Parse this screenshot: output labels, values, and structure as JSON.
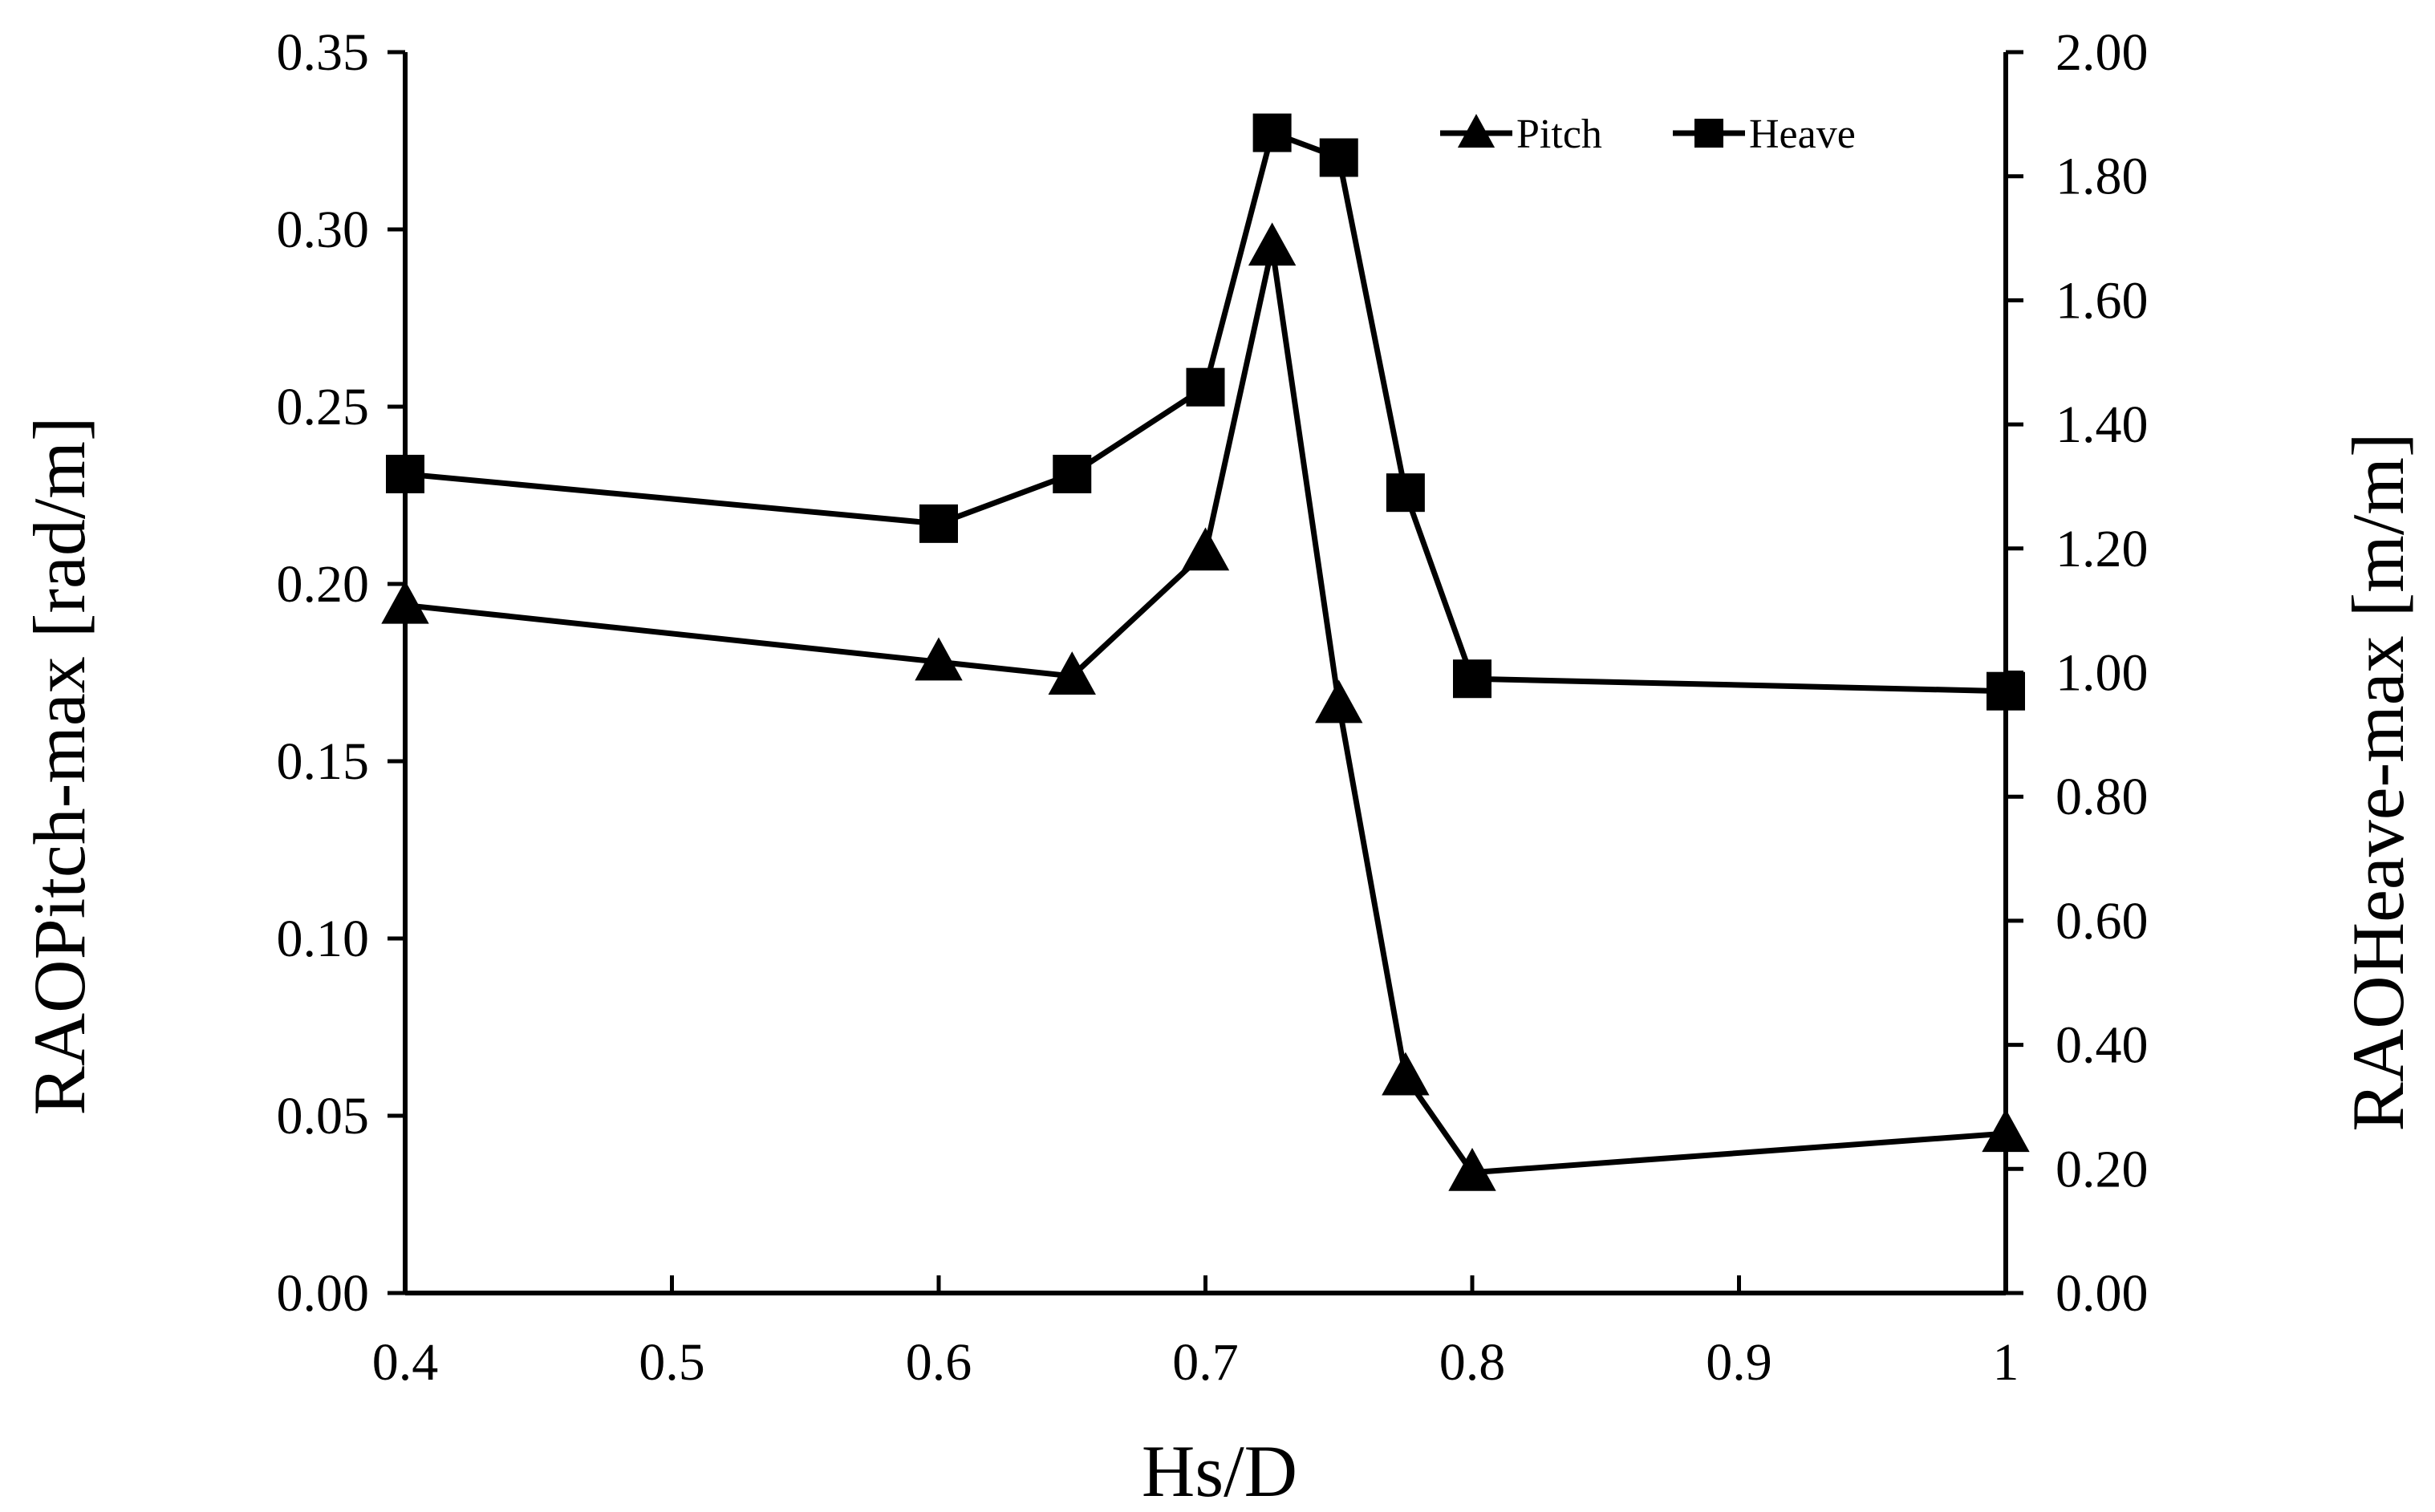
{
  "chart_data": {
    "type": "line",
    "xlabel": "Hs/D",
    "ylabel_left": "RAOPitch-max [rad/m]",
    "ylabel_right": "RAOHeave-max [m/m]",
    "xlim": [
      0.4,
      1.0
    ],
    "ylim_left": [
      0,
      0.35
    ],
    "ylim_right": [
      0,
      2.0
    ],
    "x_ticks": [
      0.4,
      0.5,
      0.6,
      0.7,
      0.8,
      0.9,
      1.0
    ],
    "x_tick_labels": [
      "0.4",
      "0.5",
      "0.6",
      "0.7",
      "0.8",
      "0.9",
      "1"
    ],
    "y_left_ticks": [
      0,
      0.05,
      0.1,
      0.15,
      0.2,
      0.25,
      0.3,
      0.35
    ],
    "y_left_tick_labels": [
      "0.00",
      "0.05",
      "0.10",
      "0.15",
      "0.20",
      "0.25",
      "0.30",
      "0.35"
    ],
    "y_right_ticks": [
      0,
      0.2,
      0.4,
      0.6,
      0.8,
      1.0,
      1.2,
      1.4,
      1.6,
      1.8,
      2.0
    ],
    "y_right_tick_labels": [
      "0.00",
      "0.20",
      "0.40",
      "0.60",
      "0.80",
      "1.00",
      "1.20",
      "1.40",
      "1.60",
      "1.80",
      "2.00"
    ],
    "grid": false,
    "legend_position": "top-right",
    "series": [
      {
        "name": "Pitch",
        "axis": "left",
        "marker": "triangle",
        "x": [
          0.4,
          0.6,
          0.65,
          0.7,
          0.725,
          0.75,
          0.775,
          0.8,
          1.0
        ],
        "values": [
          0.194,
          0.178,
          0.174,
          0.209,
          0.295,
          0.166,
          0.061,
          0.034,
          0.045
        ]
      },
      {
        "name": "Heave",
        "axis": "right",
        "marker": "square",
        "x": [
          0.4,
          0.6,
          0.65,
          0.7,
          0.725,
          0.75,
          0.775,
          0.8,
          1.0
        ],
        "values": [
          1.32,
          1.24,
          1.32,
          1.46,
          1.87,
          1.83,
          1.29,
          0.99,
          0.97
        ]
      }
    ],
    "colors": {
      "line": "#000000",
      "marker": "#000000",
      "background": "#ffffff"
    }
  }
}
